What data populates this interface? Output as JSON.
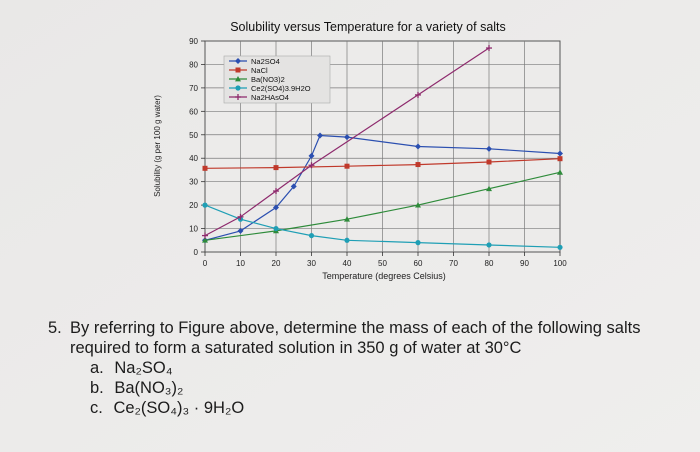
{
  "chart_data": {
    "type": "line",
    "title": "Solubility versus Temperature for a variety of salts",
    "xlabel": "Temperature (degrees Celsius)",
    "ylabel": "Solubility (g per 100 g water)",
    "xlim": [
      0,
      100
    ],
    "ylim": [
      0,
      90
    ],
    "xticks": [
      "0",
      "10",
      "20",
      "30",
      "40",
      "50",
      "60",
      "70",
      "80",
      "90",
      "100"
    ],
    "yticks": [
      "0",
      "10",
      "20",
      "30",
      "40",
      "50",
      "60",
      "70",
      "80",
      "90"
    ],
    "grid": true,
    "legend_position": "top-left",
    "series": [
      {
        "name": "Na2SO4",
        "color": "#2b4fb0",
        "marker": "diamond",
        "x": [
          0,
          10,
          20,
          25,
          30,
          32.4,
          40,
          60,
          80,
          100
        ],
        "y": [
          5,
          9,
          19,
          28,
          41,
          49.7,
          49,
          45,
          44,
          42
        ]
      },
      {
        "name": "NaCl",
        "color": "#c0392b",
        "marker": "square",
        "x": [
          0,
          20,
          40,
          60,
          80,
          100
        ],
        "y": [
          35.7,
          36,
          36.6,
          37.3,
          38.4,
          39.8
        ]
      },
      {
        "name": "Ba(NO3)2",
        "color": "#2e8b3a",
        "marker": "triangle",
        "x": [
          0,
          20,
          40,
          60,
          80,
          100
        ],
        "y": [
          5,
          9,
          14,
          20,
          27,
          34
        ]
      },
      {
        "name": "Ce2(SO4)3.9H2O",
        "color": "#1f9fb5",
        "marker": "circle",
        "x": [
          0,
          10,
          20,
          30,
          40,
          60,
          80,
          100
        ],
        "y": [
          20,
          14,
          10,
          7,
          5,
          4,
          3,
          2
        ]
      },
      {
        "name": "Na2HAsO4",
        "color": "#8e2a6d",
        "marker": "star",
        "x": [
          0,
          10,
          20,
          30,
          60,
          80
        ],
        "y": [
          7,
          15,
          26,
          37,
          67,
          87
        ]
      }
    ]
  },
  "question": {
    "number": "5.",
    "line1": "By referring to Figure above, determine the mass of each of the following salts",
    "line2": "required to form a saturated solution in 350 g of water at 30°C",
    "items": [
      {
        "label": "a.",
        "formula": "Na₂SO₄"
      },
      {
        "label": "b.",
        "formula": "Ba(NO₃)₂"
      },
      {
        "label": "c.",
        "formula": "Ce₂(SO₄)₃ · 9H₂O"
      }
    ]
  }
}
